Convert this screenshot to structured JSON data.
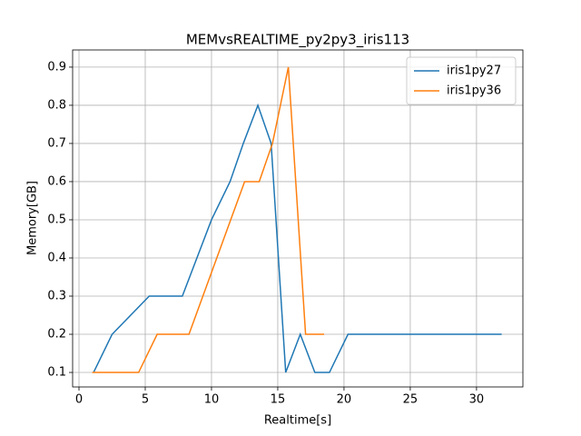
{
  "chart_data": {
    "type": "line",
    "title": "MEMvsREALTIME_py2py3_iris113",
    "x_label": "Realtime[s]",
    "y_label": "Memory[GB]",
    "series": [
      {
        "name": "iris1py27",
        "color": "#1f77b4",
        "x": [
          1.1,
          2.5,
          5.3,
          7.8,
          10.0,
          11.4,
          12.4,
          13.5,
          14.5,
          15.6,
          16.7,
          17.8,
          18.9,
          20.3,
          31.9
        ],
        "values": [
          0.1,
          0.2,
          0.3,
          0.3,
          0.5,
          0.6,
          0.7,
          0.8,
          0.7,
          0.1,
          0.2,
          0.1,
          0.1,
          0.2,
          0.2
        ]
      },
      {
        "name": "iris1py36",
        "color": "#ff7f0e",
        "x": [
          1.0,
          4.5,
          5.9,
          8.3,
          12.5,
          13.6,
          14.6,
          15.8,
          17.1,
          18.5
        ],
        "values": [
          0.1,
          0.1,
          0.2,
          0.2,
          0.6,
          0.6,
          0.7,
          0.9,
          0.2,
          0.2
        ]
      }
    ],
    "xlim": [
      -0.48,
      33.5
    ],
    "ylim": [
      0.062,
      0.945
    ],
    "xticks": [
      0,
      5,
      10,
      15,
      20,
      25,
      30
    ],
    "yticks": [
      0.1,
      0.2,
      0.3,
      0.4,
      0.5,
      0.6,
      0.7,
      0.8,
      0.9
    ],
    "grid": true,
    "legend": "upper-right"
  }
}
